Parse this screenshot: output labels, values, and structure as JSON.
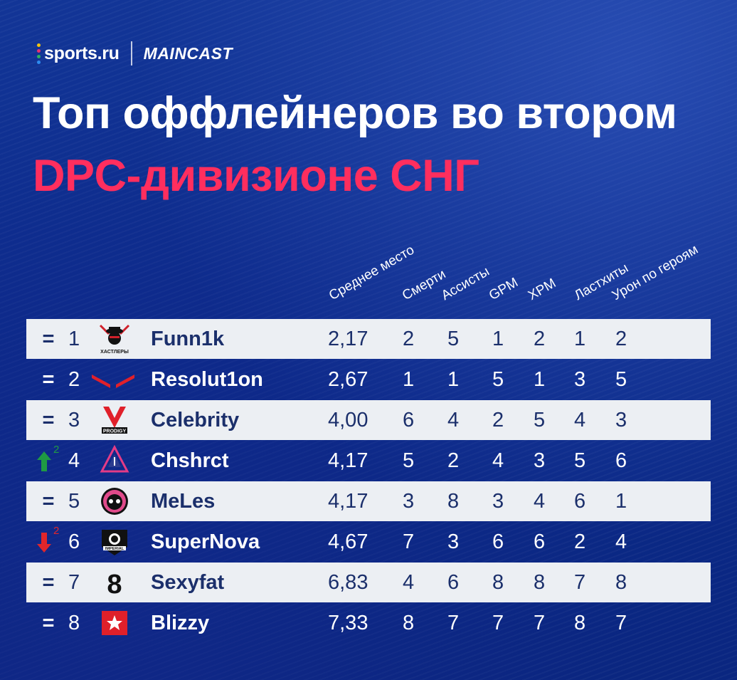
{
  "brand": {
    "sports": "sports.ru",
    "maincast": "MAINCAST",
    "dot_colors": [
      "#f4c40d",
      "#e8316f",
      "#2fb25b",
      "#2d8cf0"
    ]
  },
  "title": {
    "line1": "Топ оффлейнеров во втором",
    "line2": "DPC-дивизионе СНГ",
    "line2_color": "#ff2e5e"
  },
  "columns": [
    "Среднее место",
    "Смерти",
    "Ассисты",
    "GPM",
    "XPM",
    "Ластхиты",
    "Урон по героям"
  ],
  "colors": {
    "band": "#eceff3",
    "band_text": "#1b2f6b",
    "up": "#1f9a44",
    "down": "#e0262b",
    "accent": "#ff2e5e"
  },
  "rows": [
    {
      "move": "=",
      "move_type": "same",
      "move_by": "",
      "place": "1",
      "logo": "hustlers-logo",
      "logo_text": "ХАСТЛЕРЫ",
      "name": "Funn1k",
      "avg": "2,17",
      "values": [
        "2",
        "5",
        "1",
        "2",
        "1",
        "2"
      ]
    },
    {
      "move": "=",
      "move_type": "same",
      "move_by": "",
      "place": "2",
      "logo": "virtus-pro-logo",
      "logo_text": "",
      "name": "Resolut1on",
      "avg": "2,67",
      "values": [
        "1",
        "1",
        "5",
        "1",
        "3",
        "5"
      ]
    },
    {
      "move": "=",
      "move_type": "same",
      "move_by": "",
      "place": "3",
      "logo": "vp-prodigy-logo",
      "logo_text": "PRODIGY",
      "name": "Celebrity",
      "avg": "4,00",
      "values": [
        "6",
        "4",
        "2",
        "5",
        "4",
        "3"
      ]
    },
    {
      "move": "",
      "move_type": "up",
      "move_by": "2",
      "place": "4",
      "logo": "arrow-triangle-logo",
      "logo_text": "",
      "name": "Chshrct",
      "avg": "4,17",
      "values": [
        "5",
        "2",
        "4",
        "3",
        "5",
        "6"
      ]
    },
    {
      "move": "=",
      "move_type": "same",
      "move_by": "",
      "place": "5",
      "logo": "mask-logo",
      "logo_text": "",
      "name": "MeLes",
      "avg": "4,17",
      "values": [
        "3",
        "8",
        "3",
        "4",
        "6",
        "1"
      ]
    },
    {
      "move": "",
      "move_type": "down",
      "move_by": "2",
      "place": "6",
      "logo": "imperial-logo",
      "logo_text": "IMPERIAL",
      "name": "SuperNova",
      "avg": "4,67",
      "values": [
        "7",
        "3",
        "6",
        "6",
        "2",
        "4"
      ]
    },
    {
      "move": "=",
      "move_type": "same",
      "move_by": "",
      "place": "7",
      "logo": "b8-logo",
      "logo_text": "",
      "name": "Sexyfat",
      "avg": "6,83",
      "values": [
        "4",
        "6",
        "8",
        "8",
        "7",
        "8"
      ]
    },
    {
      "move": "=",
      "move_type": "same",
      "move_by": "",
      "place": "8",
      "logo": "gambit-logo",
      "logo_text": "",
      "name": "Blizzy",
      "avg": "7,33",
      "values": [
        "8",
        "7",
        "7",
        "7",
        "8",
        "7"
      ]
    }
  ]
}
